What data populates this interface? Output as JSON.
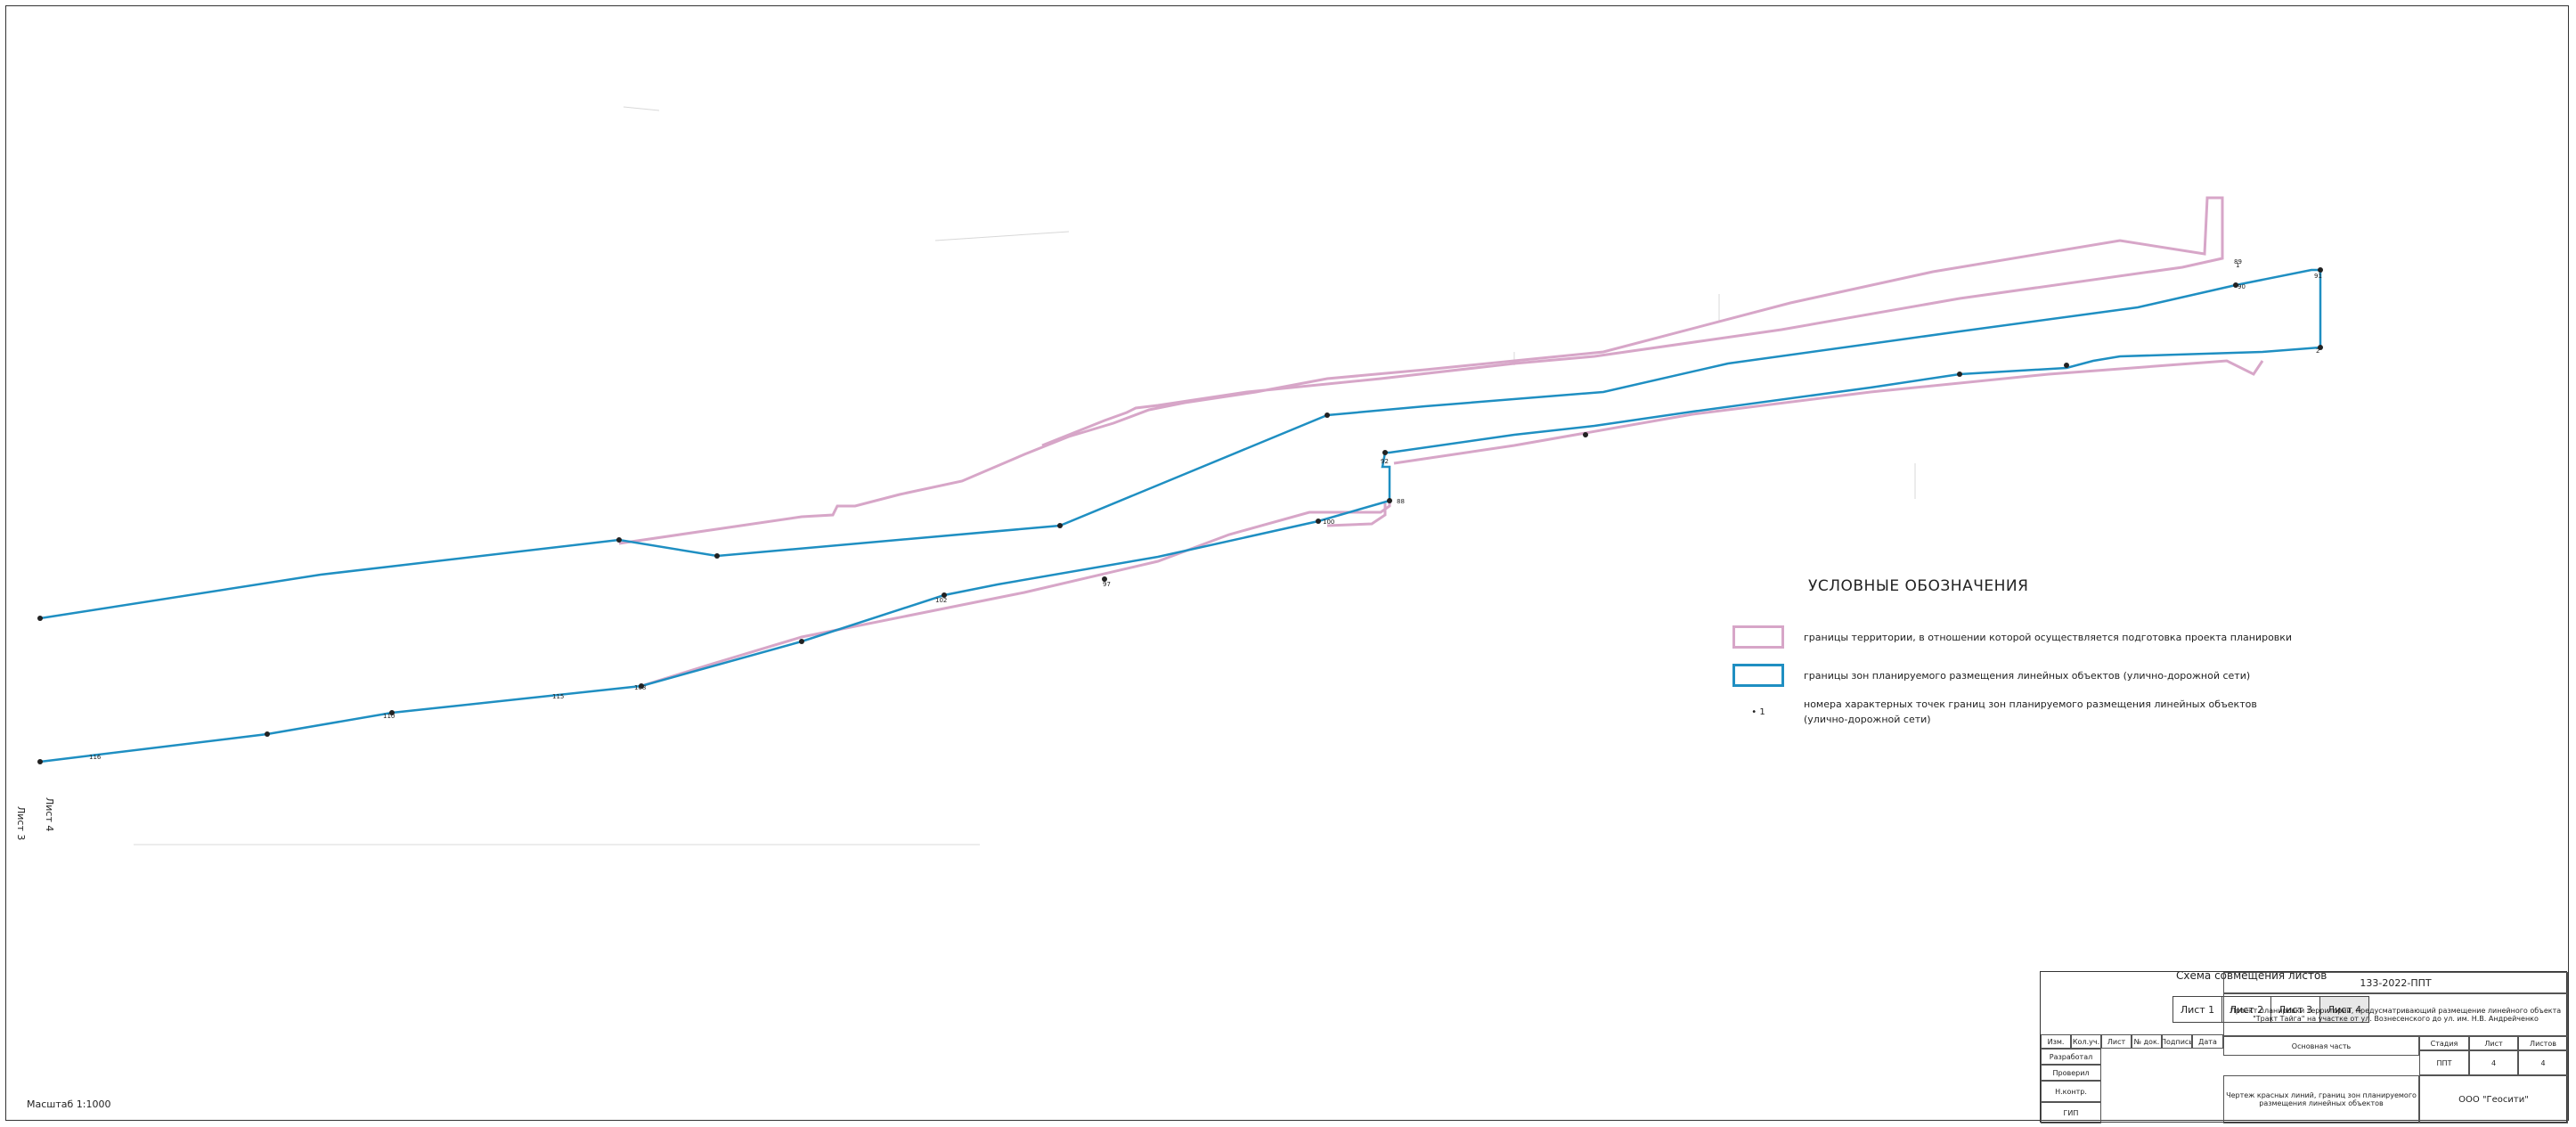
{
  "colors": {
    "territory_boundary": "#d7a6c8",
    "zone_boundary": "#1f8fc2",
    "frame": "#333333"
  },
  "legend": {
    "title": "УСЛОВНЫЕ ОБОЗНАЧЕНИЯ",
    "items": [
      {
        "type": "pink-outline",
        "text": "границы территории, в отношении которой осуществляется подготовка проекта планировки"
      },
      {
        "type": "blue-outline",
        "text": "границы зон планируемого размещения линейных объектов (улично-дорожной сети)"
      },
      {
        "type": "point-mark",
        "marker": "• 1",
        "text": "номера характерных точек границ зон планируемого размещения линейных объектов (улично-дорожной сети)"
      }
    ]
  },
  "sheet_scheme": {
    "title": "Схема совмещения листов",
    "sheets": [
      "Лист 1",
      "Лист 2",
      "Лист 3",
      "Лист 4"
    ]
  },
  "side_labels": [
    "Лист 4",
    "Лист 3"
  ],
  "point_labels": [
    {
      "text": "1",
      "n": "p1"
    },
    {
      "text": "2",
      "n": "p2"
    },
    {
      "text": "88",
      "n": "p88"
    },
    {
      "text": "89",
      "n": "p89"
    },
    {
      "text": "90",
      "n": "p90"
    },
    {
      "text": "91",
      "n": "p91"
    },
    {
      "text": "92",
      "n": "p92"
    },
    {
      "text": "97",
      "n": "p97"
    },
    {
      "text": "100",
      "n": "p100"
    },
    {
      "text": "102",
      "n": "p102"
    },
    {
      "text": "108",
      "n": "p108"
    },
    {
      "text": "110",
      "n": "p110"
    },
    {
      "text": "115",
      "n": "p115"
    },
    {
      "text": "116",
      "n": "p116"
    }
  ],
  "scale": "Масштаб 1:1000",
  "stamp": {
    "code": "133-2022-ППТ",
    "project": "Проект планировки территории, предусматривающий размещение линейного объекта \"Тракт Тайга\" на участке от ул. Вознесенского до ул. им. Н.В. Андрейченко",
    "section": "Основная часть",
    "drawing": "Чертеж красных линий, границ зон планируемого размещения линейных объектов",
    "stage_header": "Стадия",
    "sheet_header": "Лист",
    "sheets_header": "Листов",
    "stage": "ППТ",
    "sheet": "4",
    "sheets": "4",
    "company": "ООО \"Геосити\"",
    "rows": [
      "Разработал",
      "Проверил",
      "Н.контр.",
      "ГИП"
    ],
    "cols": [
      "Изм.",
      "Кол.уч.",
      "Лист",
      "№ док.",
      "Подпись",
      "Дата"
    ]
  }
}
